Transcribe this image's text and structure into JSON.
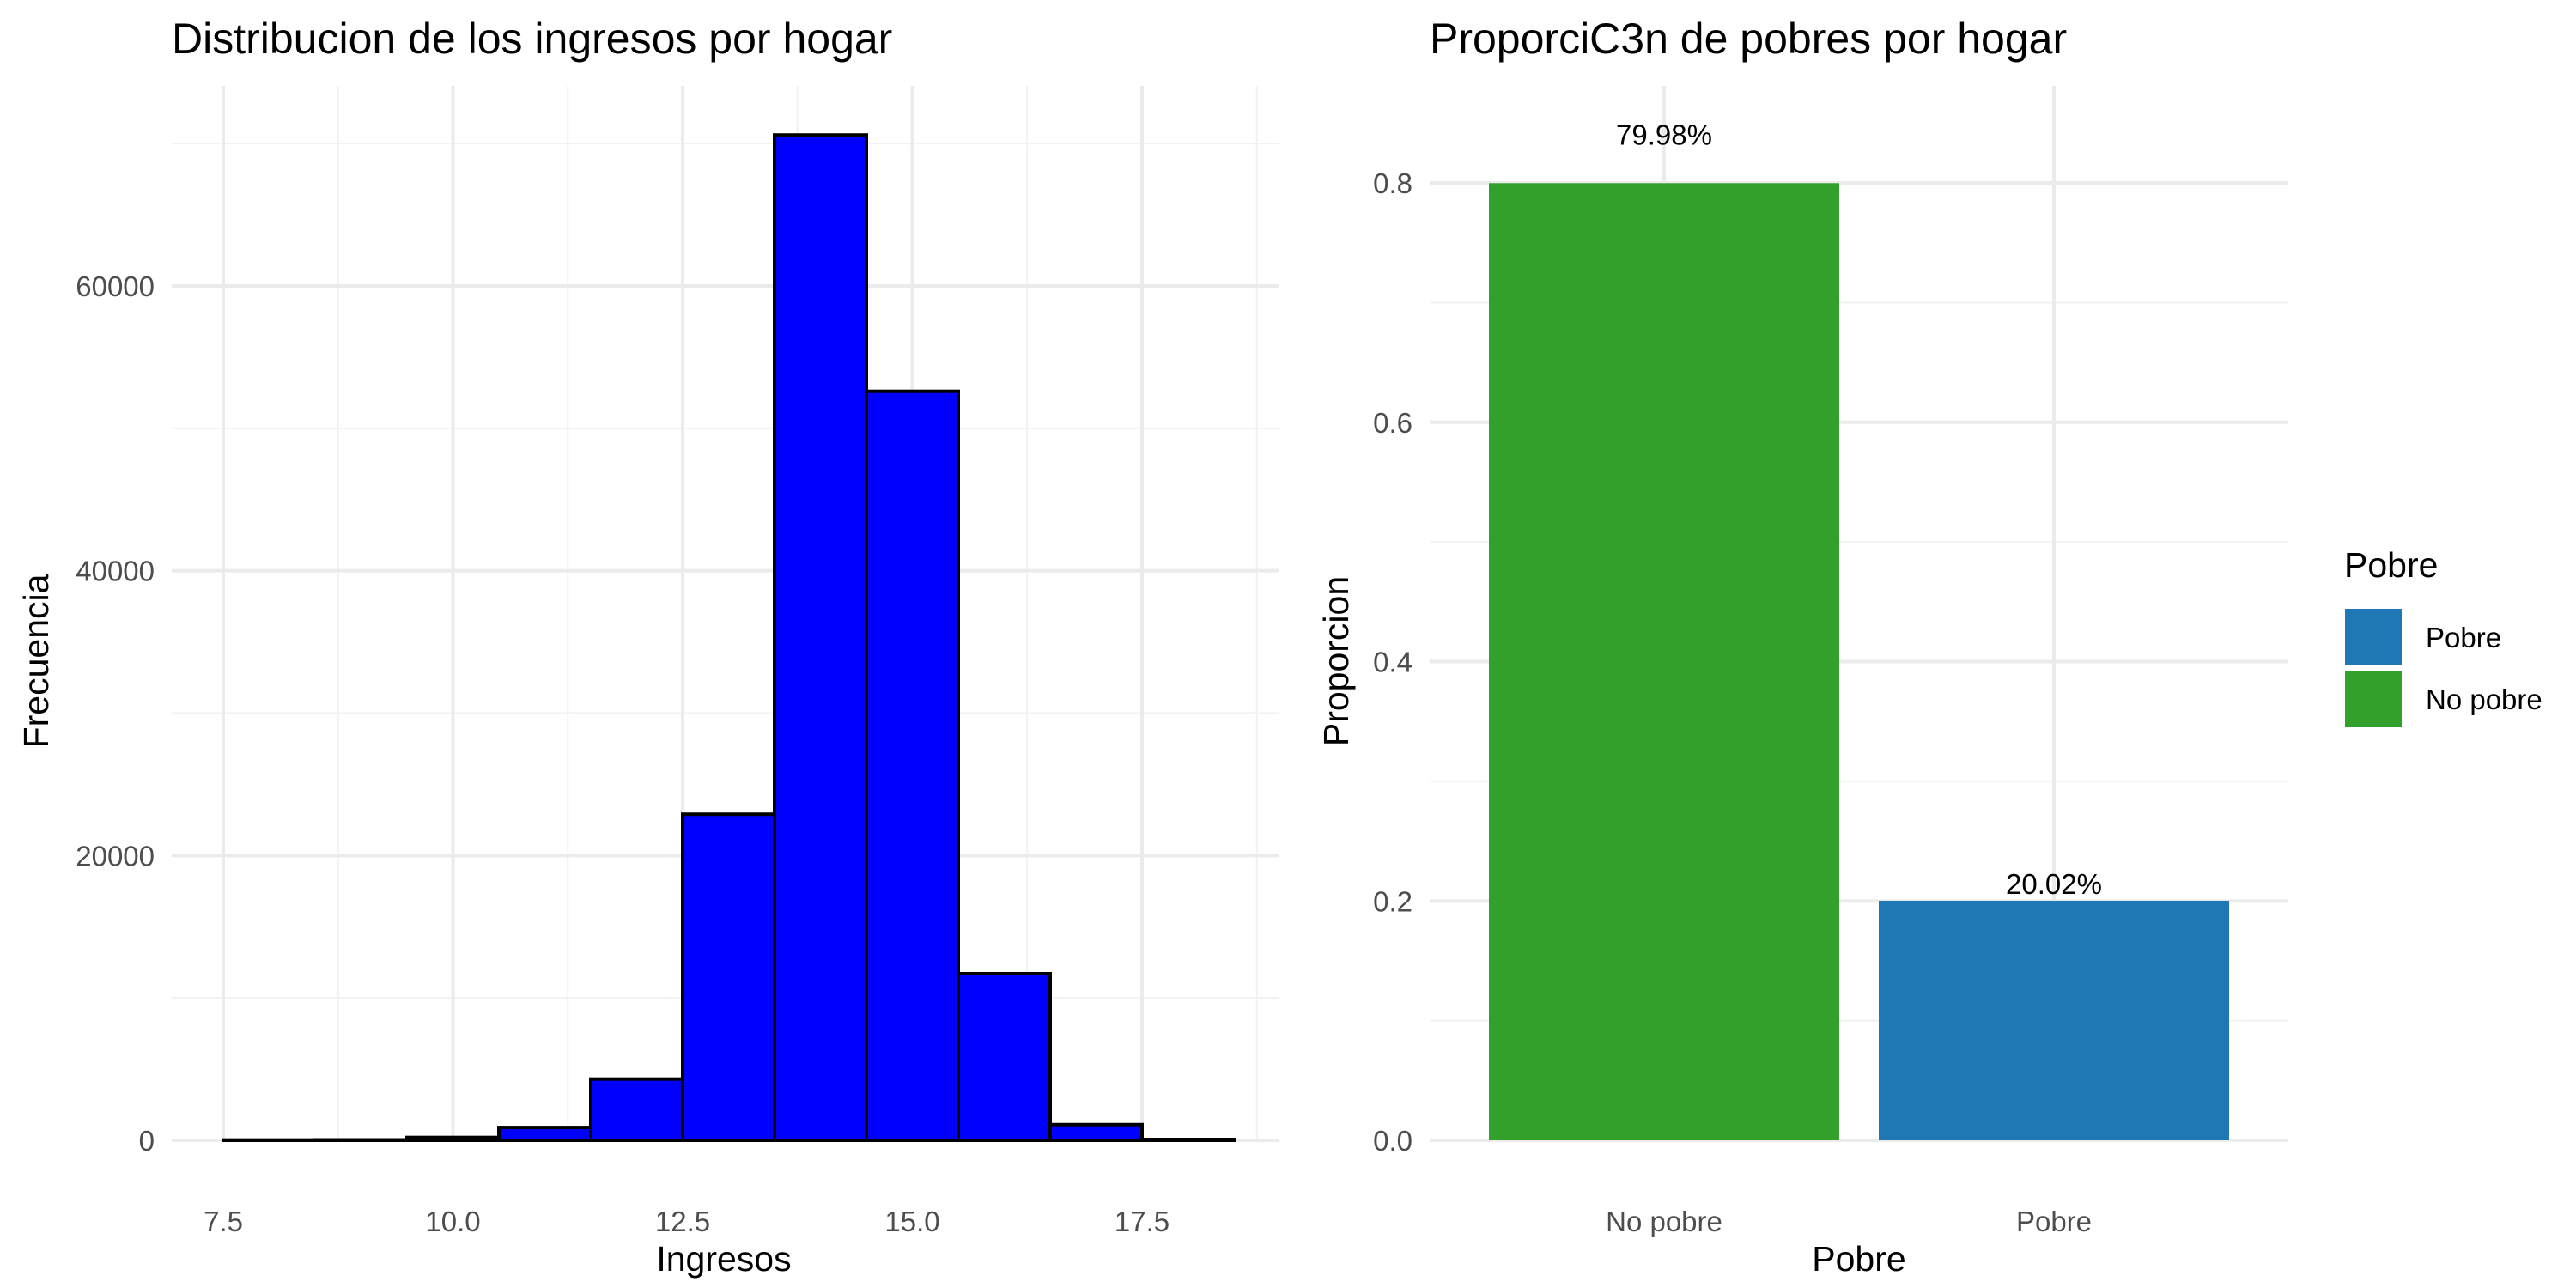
{
  "chart_data": [
    {
      "type": "bar",
      "subtype": "histogram",
      "title": "Distribucion de los ingresos por hogar",
      "xlabel": "Ingresos",
      "ylabel": "Frecuencia",
      "xlim": [
        7.5,
        18.5
      ],
      "ylim": [
        0,
        73000
      ],
      "x_ticks": [
        "7.5",
        "10.0",
        "12.5",
        "15.0",
        "17.5"
      ],
      "y_ticks": [
        "0",
        "20000",
        "40000",
        "60000"
      ],
      "bin_width": 1,
      "bins": [
        {
          "x_start": 7.5,
          "x_end": 8.5,
          "count": 20
        },
        {
          "x_start": 8.5,
          "x_end": 9.5,
          "count": 30
        },
        {
          "x_start": 9.5,
          "x_end": 10.5,
          "count": 200
        },
        {
          "x_start": 10.5,
          "x_end": 11.5,
          "count": 900
        },
        {
          "x_start": 11.5,
          "x_end": 12.5,
          "count": 4300
        },
        {
          "x_start": 12.5,
          "x_end": 13.5,
          "count": 22900
        },
        {
          "x_start": 13.5,
          "x_end": 14.5,
          "count": 70600
        },
        {
          "x_start": 14.5,
          "x_end": 15.5,
          "count": 52600
        },
        {
          "x_start": 15.5,
          "x_end": 16.5,
          "count": 11700
        },
        {
          "x_start": 16.5,
          "x_end": 17.5,
          "count": 1100
        },
        {
          "x_start": 17.5,
          "x_end": 18.5,
          "count": 60
        }
      ],
      "fill_color": "#0000ff",
      "outline_color": "#000000",
      "grid": true
    },
    {
      "type": "bar",
      "title": "ProporciC3n de pobres por hogar",
      "xlabel": "Pobre",
      "ylabel": "Proporcion",
      "ylim": [
        0,
        0.8
      ],
      "y_ticks": [
        "0.0",
        "0.2",
        "0.4",
        "0.6",
        "0.8"
      ],
      "categories": [
        "No pobre",
        "Pobre"
      ],
      "values": [
        0.7998,
        0.2002
      ],
      "data_labels": [
        "79.98%",
        "20.02%"
      ],
      "colors": [
        "#33a02c",
        "#1f78b4"
      ],
      "grid": true,
      "legend": {
        "title": "Pobre",
        "position": "right",
        "entries": [
          {
            "label": "Pobre",
            "color": "#1f78b4"
          },
          {
            "label": "No pobre",
            "color": "#33a02c"
          }
        ]
      }
    }
  ]
}
